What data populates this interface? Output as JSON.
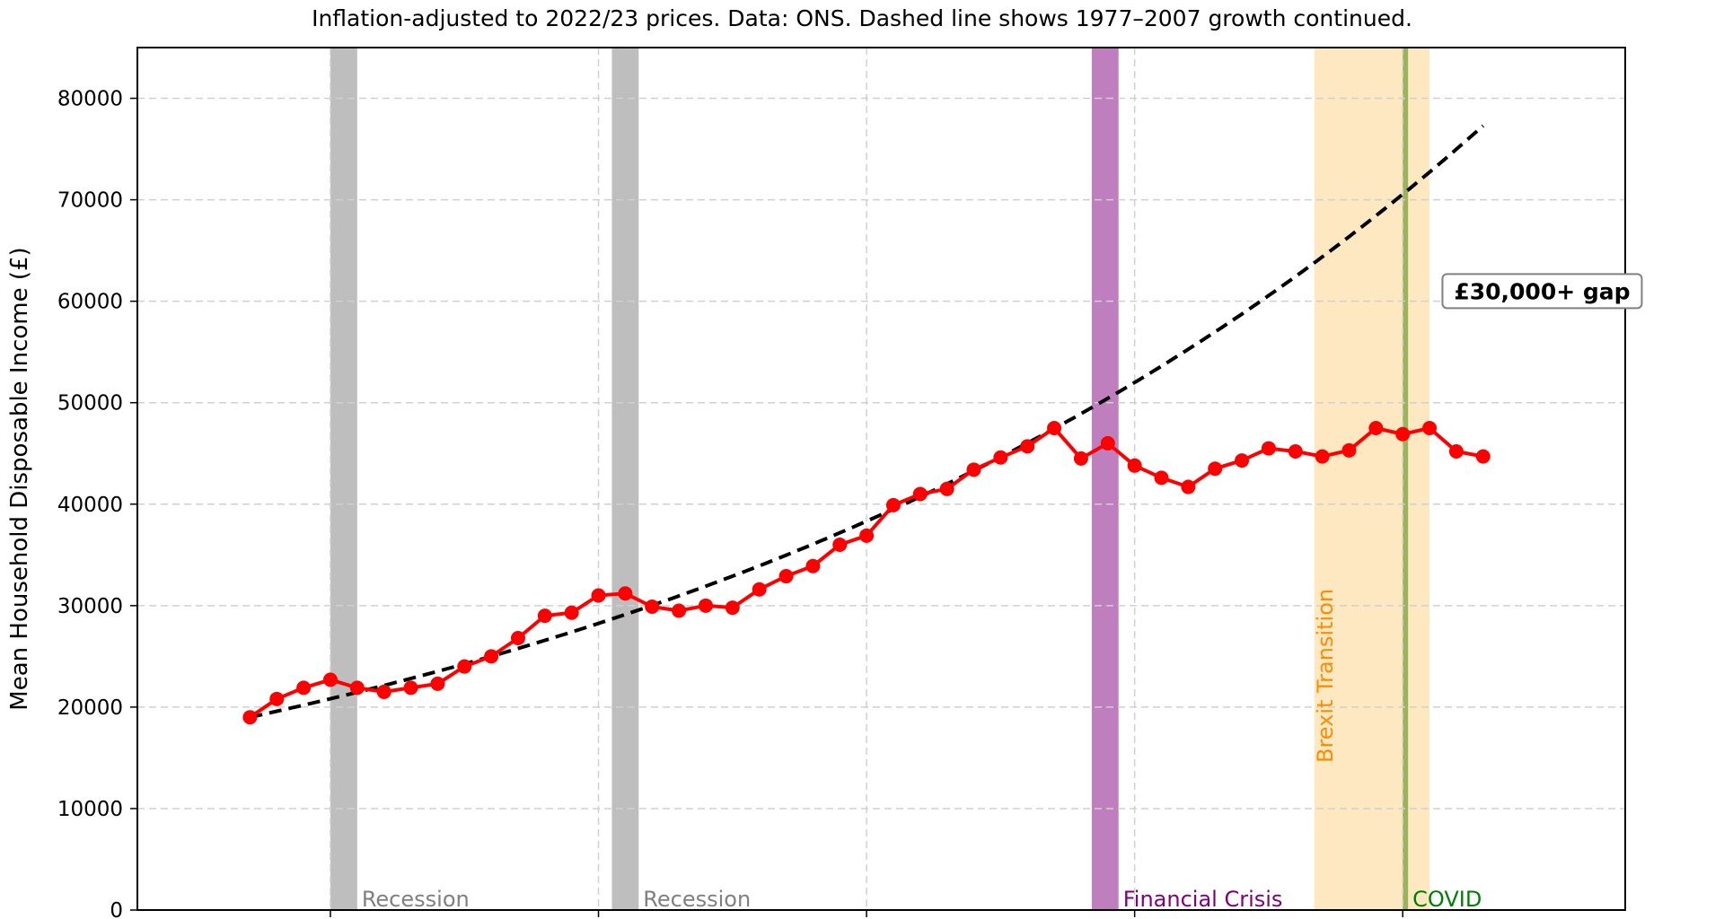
{
  "chart_data": {
    "type": "line",
    "title": "Inflation-adjusted to 2022/23 prices. Data: ONS. Dashed line shows 1977–2007 growth continued.",
    "xlabel": "",
    "ylabel": "Mean Household Disposable Income (£)",
    "ylim": [
      0,
      85000
    ],
    "xlim": [
      1972.8,
      2028.3
    ],
    "yticks": [
      0,
      10000,
      20000,
      30000,
      40000,
      50000,
      60000,
      70000,
      80000
    ],
    "xticks": [
      1980,
      1990,
      2000,
      2010,
      2020
    ],
    "xtick_labels_visible": false,
    "grid": true,
    "x": [
      1977,
      1978,
      1979,
      1980,
      1981,
      1982,
      1983,
      1984,
      1985,
      1986,
      1987,
      1988,
      1989,
      1990,
      1991,
      1992,
      1993,
      1994,
      1995,
      1996,
      1997,
      1998,
      1999,
      2000,
      2001,
      2002,
      2003,
      2004,
      2005,
      2006,
      2007,
      2008,
      2009,
      2010,
      2011,
      2012,
      2013,
      2014,
      2015,
      2016,
      2017,
      2018,
      2019,
      2020,
      2021,
      2022,
      2023
    ],
    "series": [
      {
        "name": "Mean household disposable income",
        "color": "#ff0000",
        "style": "solid-markers",
        "values": [
          19000,
          20800,
          21900,
          22700,
          21900,
          21500,
          21900,
          22300,
          24000,
          25000,
          26800,
          29000,
          29300,
          31000,
          31200,
          29900,
          29500,
          30000,
          29800,
          31600,
          32900,
          33900,
          36000,
          36900,
          39900,
          41000,
          41500,
          43400,
          44600,
          45700,
          47500,
          44500,
          46000,
          43800,
          42600,
          41700,
          43500,
          44300,
          45500,
          45200,
          44700,
          45300,
          47500,
          46900,
          47500,
          45200,
          44700
        ]
      },
      {
        "name": "1977–2007 growth continued (trend)",
        "color": "#000000",
        "style": "dashed",
        "x_range": [
          1977,
          2023
        ],
        "start_value": 19000,
        "end_value": 77300,
        "annual_growth_rate": 0.031
      }
    ],
    "shaded_periods": [
      {
        "label": "Recession",
        "start": 1980.0,
        "end": 1981.0,
        "color": "#bebebe",
        "label_color": "#808080"
      },
      {
        "label": "Recession",
        "start": 1990.5,
        "end": 1991.5,
        "color": "#bebebe",
        "label_color": "#808080"
      },
      {
        "label": "Financial Crisis",
        "start": 2008.4,
        "end": 2009.4,
        "color": "#bf7fbf",
        "label_color": "#800080"
      },
      {
        "label": "Brexit Transition",
        "start": 2016.7,
        "end": 2021.0,
        "color": "#fde8c1",
        "label_color": "#ff8c00",
        "label_rotation": -90
      },
      {
        "label": "COVID",
        "start": 2020.0,
        "end": 2020.2,
        "color": "#9bb45a",
        "label_color": "#008000"
      }
    ],
    "annotations": [
      {
        "text": "£30,000+ gap",
        "x": 2025.2,
        "y": 61000,
        "bold": true,
        "boxed": true
      }
    ]
  }
}
